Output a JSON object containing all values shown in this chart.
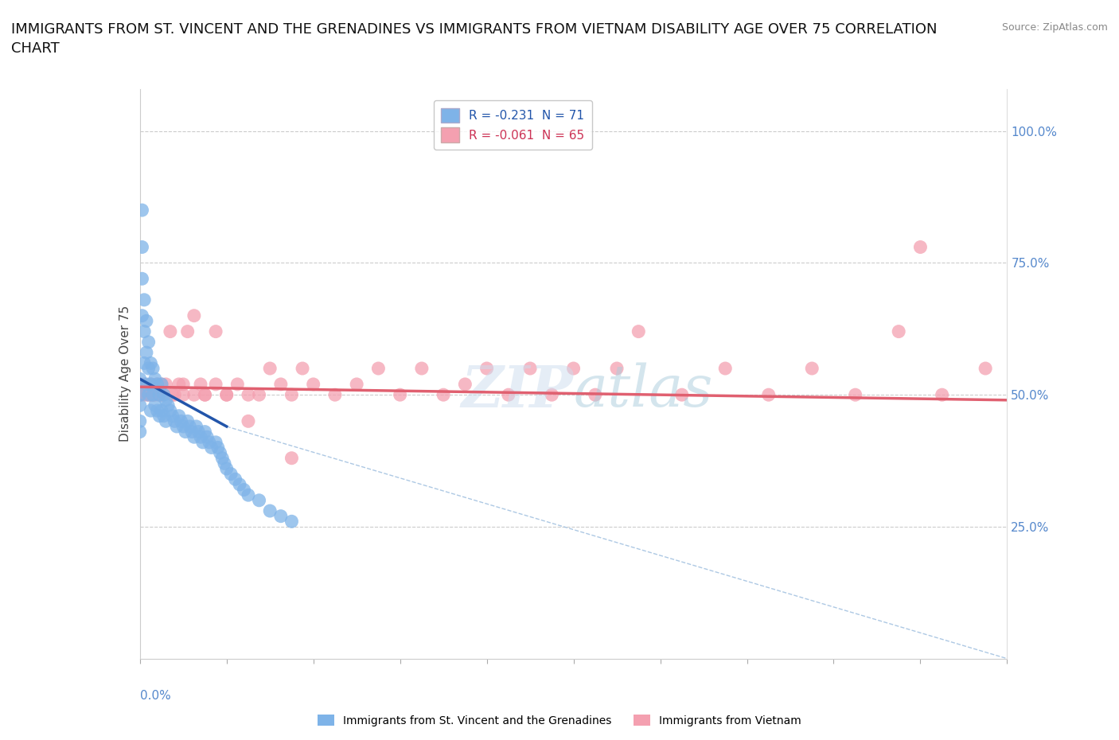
{
  "title": "IMMIGRANTS FROM ST. VINCENT AND THE GRENADINES VS IMMIGRANTS FROM VIETNAM DISABILITY AGE OVER 75 CORRELATION\nCHART",
  "source": "Source: ZipAtlas.com",
  "ylabel": "Disability Age Over 75",
  "ytick_labels_right": [
    "100.0%",
    "75.0%",
    "50.0%",
    "25.0%"
  ],
  "ytick_values": [
    1.0,
    0.75,
    0.5,
    0.25
  ],
  "legend_sv": "R = -0.231  N = 71",
  "legend_vn": "R = -0.061  N = 65",
  "legend_sv_label": "Immigrants from St. Vincent and the Grenadines",
  "legend_vn_label": "Immigrants from Vietnam",
  "sv_color": "#7EB3E8",
  "vn_color": "#F4A0B0",
  "sv_line_color": "#2255AA",
  "vn_line_color": "#E06070",
  "sv_dash_color": "#99BBDD",
  "grid_color": "#CCCCCC",
  "background_color": "#FFFFFF",
  "tick_color": "#5588CC",
  "xlim": [
    0.0,
    0.4
  ],
  "ylim": [
    0.0,
    1.08
  ],
  "hlines": [
    1.0,
    0.75,
    0.5,
    0.25
  ],
  "sv_x": [
    0.0,
    0.0,
    0.0,
    0.0,
    0.0,
    0.001,
    0.001,
    0.001,
    0.001,
    0.002,
    0.002,
    0.002,
    0.003,
    0.003,
    0.003,
    0.004,
    0.004,
    0.004,
    0.005,
    0.005,
    0.005,
    0.006,
    0.006,
    0.007,
    0.007,
    0.008,
    0.008,
    0.009,
    0.009,
    0.01,
    0.01,
    0.011,
    0.011,
    0.012,
    0.012,
    0.013,
    0.014,
    0.015,
    0.016,
    0.017,
    0.018,
    0.019,
    0.02,
    0.021,
    0.022,
    0.023,
    0.024,
    0.025,
    0.026,
    0.027,
    0.028,
    0.029,
    0.03,
    0.031,
    0.032,
    0.033,
    0.035,
    0.036,
    0.037,
    0.038,
    0.039,
    0.04,
    0.042,
    0.044,
    0.046,
    0.048,
    0.05,
    0.055,
    0.06,
    0.065,
    0.07
  ],
  "sv_y": [
    0.53,
    0.5,
    0.48,
    0.45,
    0.43,
    0.85,
    0.78,
    0.72,
    0.65,
    0.68,
    0.62,
    0.56,
    0.64,
    0.58,
    0.52,
    0.6,
    0.55,
    0.5,
    0.56,
    0.52,
    0.47,
    0.55,
    0.5,
    0.53,
    0.48,
    0.52,
    0.47,
    0.5,
    0.46,
    0.52,
    0.47,
    0.5,
    0.46,
    0.49,
    0.45,
    0.48,
    0.47,
    0.46,
    0.45,
    0.44,
    0.46,
    0.45,
    0.44,
    0.43,
    0.45,
    0.44,
    0.43,
    0.42,
    0.44,
    0.43,
    0.42,
    0.41,
    0.43,
    0.42,
    0.41,
    0.4,
    0.41,
    0.4,
    0.39,
    0.38,
    0.37,
    0.36,
    0.35,
    0.34,
    0.33,
    0.32,
    0.31,
    0.3,
    0.28,
    0.27,
    0.26
  ],
  "vn_x": [
    0.0,
    0.001,
    0.002,
    0.003,
    0.004,
    0.005,
    0.006,
    0.007,
    0.008,
    0.009,
    0.01,
    0.012,
    0.014,
    0.016,
    0.018,
    0.02,
    0.022,
    0.025,
    0.028,
    0.03,
    0.035,
    0.04,
    0.045,
    0.05,
    0.055,
    0.06,
    0.065,
    0.07,
    0.075,
    0.08,
    0.09,
    0.1,
    0.11,
    0.12,
    0.13,
    0.14,
    0.15,
    0.16,
    0.17,
    0.18,
    0.19,
    0.2,
    0.21,
    0.22,
    0.23,
    0.25,
    0.27,
    0.29,
    0.31,
    0.33,
    0.35,
    0.37,
    0.39,
    0.0,
    0.005,
    0.01,
    0.015,
    0.02,
    0.025,
    0.03,
    0.035,
    0.04,
    0.05,
    0.07,
    0.36
  ],
  "vn_y": [
    0.5,
    0.5,
    0.52,
    0.5,
    0.5,
    0.52,
    0.5,
    0.5,
    0.52,
    0.5,
    0.5,
    0.52,
    0.62,
    0.5,
    0.52,
    0.5,
    0.62,
    0.5,
    0.52,
    0.5,
    0.62,
    0.5,
    0.52,
    0.5,
    0.5,
    0.55,
    0.52,
    0.5,
    0.55,
    0.52,
    0.5,
    0.52,
    0.55,
    0.5,
    0.55,
    0.5,
    0.52,
    0.55,
    0.5,
    0.55,
    0.5,
    0.55,
    0.5,
    0.55,
    0.62,
    0.5,
    0.55,
    0.5,
    0.55,
    0.5,
    0.62,
    0.5,
    0.55,
    0.52,
    0.5,
    0.52,
    0.5,
    0.52,
    0.65,
    0.5,
    0.52,
    0.5,
    0.45,
    0.38,
    0.78
  ],
  "sv_trend": [
    0.0,
    0.04,
    0.53,
    0.44
  ],
  "sv_trend_dash": [
    0.04,
    0.4,
    0.44,
    0.0
  ],
  "vn_trend": [
    0.0,
    0.4,
    0.515,
    0.49
  ]
}
